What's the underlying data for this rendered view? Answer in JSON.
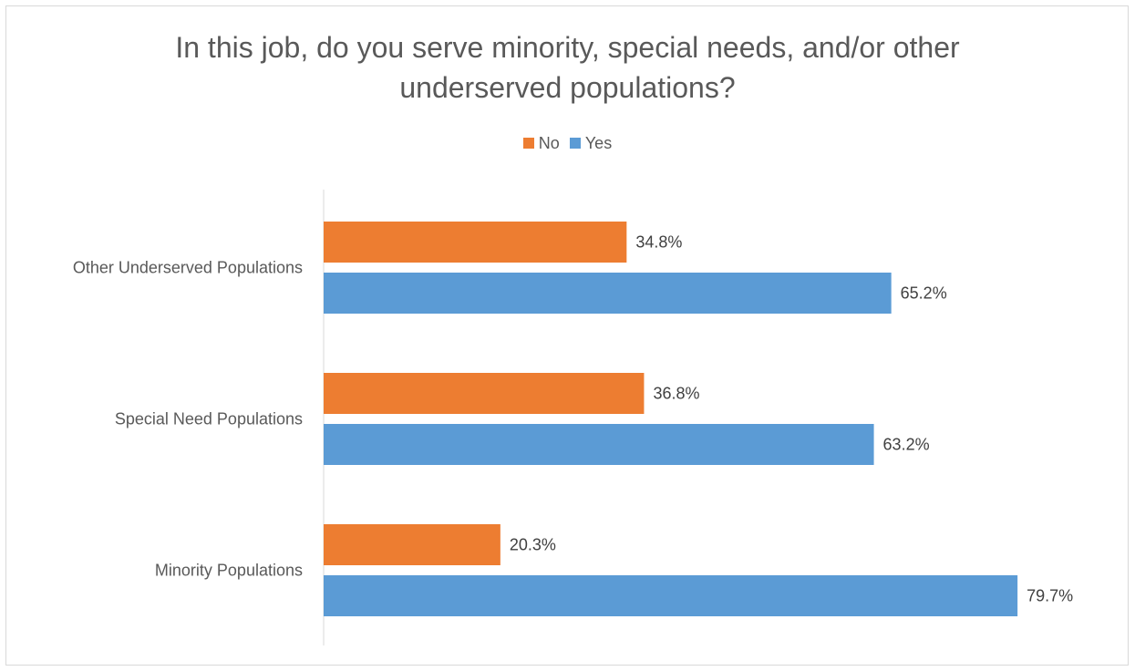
{
  "chart_data": {
    "type": "bar",
    "orientation": "horizontal",
    "title": "In this job, do you serve minority, special needs, and/or other underserved populations?",
    "title_lines": [
      "In this job, do you serve minority, special needs, and/or other",
      "underserved populations?"
    ],
    "categories": [
      "Other Underserved Populations",
      "Special Need Populations",
      "Minority Populations"
    ],
    "series": [
      {
        "name": "No",
        "color": "#ED7D31",
        "values": [
          34.8,
          36.8,
          20.3
        ],
        "labels": [
          "34.8%",
          "36.8%",
          "20.3%"
        ]
      },
      {
        "name": "Yes",
        "color": "#5B9BD5",
        "values": [
          65.2,
          63.2,
          79.7
        ],
        "labels": [
          "65.2%",
          "63.2%",
          "79.7%"
        ]
      }
    ],
    "xlim": [
      0,
      100
    ],
    "grid": false,
    "legend_position": "top"
  }
}
